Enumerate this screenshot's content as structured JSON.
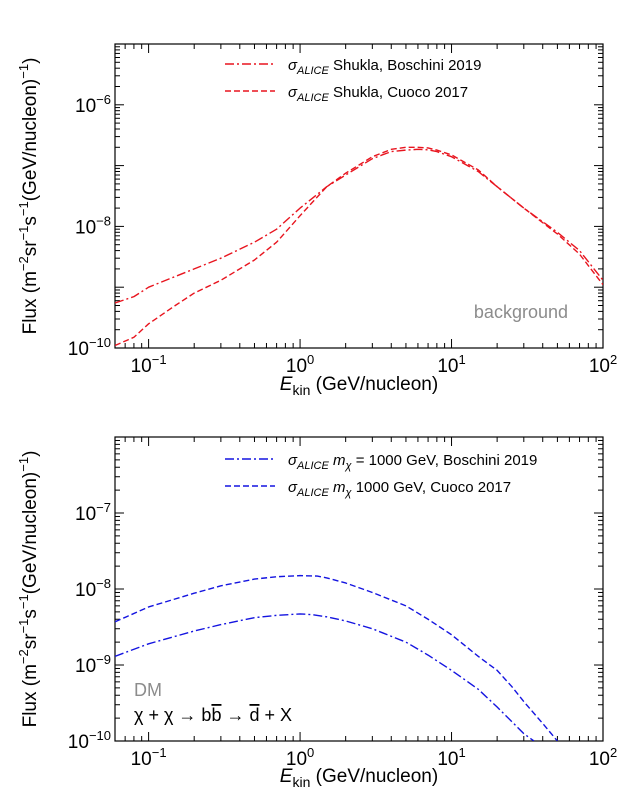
{
  "chart_data": [
    {
      "type": "line",
      "xscale": "log",
      "yscale": "log",
      "xlim": [
        0.06,
        100
      ],
      "ylim": [
        1e-10,
        1e-05
      ],
      "xlabel": {
        "main": "E",
        "sub": "kin",
        "rest": " (GeV/nucleon)"
      },
      "ylabel": {
        "base": "Flux (m",
        "e1": "−2",
        "mid1": "sr",
        "e2": "−1",
        "mid2": "s",
        "e3": "−1",
        "rest": "(GeV/nucleon)",
        "e4": "−1",
        "close": ")"
      },
      "x_ticks": [
        {
          "base": "10",
          "exp": "−1"
        },
        {
          "base": "10",
          "exp": "0"
        },
        {
          "base": "10",
          "exp": "1"
        },
        {
          "base": "10",
          "exp": "2"
        }
      ],
      "y_ticks": [
        {
          "base": "10",
          "exp": "−10"
        },
        {
          "base": "10",
          "exp": "−8"
        },
        {
          "base": "10",
          "exp": "−6"
        }
      ],
      "annotation": "background",
      "annotation_color": "#8c8c8c",
      "legend_position": "top-right",
      "series": [
        {
          "name": {
            "sigma": "σ",
            "sub": "ALICE",
            "text": " Shukla, Boschini 2019"
          },
          "color": "#e8141e",
          "dash": "dashdot",
          "x": [
            0.06,
            0.08,
            0.1,
            0.15,
            0.2,
            0.3,
            0.5,
            0.7,
            1.0,
            1.5,
            2,
            3,
            4,
            5,
            6,
            7,
            8,
            10,
            15,
            20,
            30,
            50,
            70,
            100
          ],
          "y": [
            5.5e-10,
            7e-10,
            1e-09,
            1.5e-09,
            2e-09,
            3e-09,
            5.5e-09,
            9e-09,
            2e-08,
            4.5e-08,
            7e-08,
            1.3e-07,
            1.7e-07,
            1.8e-07,
            1.85e-07,
            1.82e-07,
            1.7e-07,
            1.4e-07,
            8e-08,
            4.5e-08,
            2e-08,
            8e-09,
            4e-09,
            1.3e-09
          ]
        },
        {
          "name": {
            "sigma": "σ",
            "sub": "ALICE",
            "text": " Shukla, Cuoco 2017"
          },
          "color": "#e8141e",
          "dash": "dash",
          "x": [
            0.06,
            0.08,
            0.1,
            0.15,
            0.2,
            0.3,
            0.5,
            0.7,
            1.0,
            1.5,
            2,
            3,
            4,
            5,
            6,
            7,
            8,
            10,
            15,
            20,
            30,
            50,
            70,
            100
          ],
          "y": [
            1.1e-10,
            1.5e-10,
            2.5e-10,
            5e-10,
            8e-10,
            1.3e-09,
            2.8e-09,
            5.5e-09,
            1.5e-08,
            4.5e-08,
            7.5e-08,
            1.4e-07,
            1.85e-07,
            2e-07,
            2e-07,
            1.95e-07,
            1.8e-07,
            1.5e-07,
            8.5e-08,
            4.5e-08,
            2e-08,
            7.5e-09,
            3.5e-09,
            1.1e-09
          ]
        }
      ]
    },
    {
      "type": "line",
      "xscale": "log",
      "yscale": "log",
      "xlim": [
        0.06,
        100
      ],
      "ylim": [
        1e-10,
        1e-06
      ],
      "xlabel": {
        "main": "E",
        "sub": "kin",
        "rest": " (GeV/nucleon)"
      },
      "ylabel": {
        "base": "Flux (m",
        "e1": "−2",
        "mid1": "sr",
        "e2": "−1",
        "mid2": "s",
        "e3": "−1",
        "rest": "(GeV/nucleon)",
        "e4": "−1",
        "close": ")"
      },
      "x_ticks": [
        {
          "base": "10",
          "exp": "−1"
        },
        {
          "base": "10",
          "exp": "0"
        },
        {
          "base": "10",
          "exp": "1"
        },
        {
          "base": "10",
          "exp": "2"
        }
      ],
      "y_ticks": [
        {
          "base": "10",
          "exp": "−10"
        },
        {
          "base": "10",
          "exp": "−9"
        },
        {
          "base": "10",
          "exp": "−8"
        },
        {
          "base": "10",
          "exp": "−7"
        }
      ],
      "annotation": "DM",
      "annotation_color": "#8c8c8c",
      "process": {
        "lhs": "χ + χ → b",
        "bbar": "b",
        "mid": " → ",
        "dbar": "d",
        "rhs": " + X"
      },
      "legend_position": "top-right",
      "series": [
        {
          "name": {
            "sigma": "σ",
            "sub": "ALICE",
            "m": " m",
            "msub": "χ",
            "text": " = 1000 GeV, Boschini 2019"
          },
          "color": "#1414e0",
          "dash": "dashdot",
          "x": [
            0.06,
            0.1,
            0.2,
            0.3,
            0.5,
            0.7,
            1.0,
            1.2,
            1.5,
            2,
            3,
            5,
            7,
            10,
            15,
            20,
            25,
            30,
            35
          ],
          "y": [
            1.3e-09,
            1.9e-09,
            2.8e-09,
            3.4e-09,
            4.2e-09,
            4.5e-09,
            4.7e-09,
            4.6e-09,
            4.3e-09,
            3.8e-09,
            3e-09,
            2e-09,
            1.35e-09,
            8.5e-10,
            4.8e-10,
            2.8e-10,
            1.8e-10,
            1.25e-10,
            1e-10
          ]
        },
        {
          "name": {
            "sigma": "σ",
            "sub": "ALICE",
            "m": " m",
            "msub": "χ",
            "text": " 1000 GeV, Cuoco 2017"
          },
          "color": "#1414e0",
          "dash": "dash",
          "x": [
            0.06,
            0.1,
            0.2,
            0.3,
            0.5,
            0.7,
            1.0,
            1.3,
            1.5,
            2,
            3,
            5,
            7,
            10,
            15,
            20,
            25,
            30,
            40,
            50
          ],
          "y": [
            3.7e-09,
            5.8e-09,
            8.8e-09,
            1.1e-08,
            1.35e-08,
            1.45e-08,
            1.5e-08,
            1.48e-08,
            1.4e-08,
            1.2e-08,
            9e-09,
            6e-09,
            4e-09,
            2.5e-09,
            1.3e-09,
            8.5e-10,
            5.2e-10,
            3.3e-10,
            1.7e-10,
            1e-10
          ]
        }
      ]
    }
  ]
}
